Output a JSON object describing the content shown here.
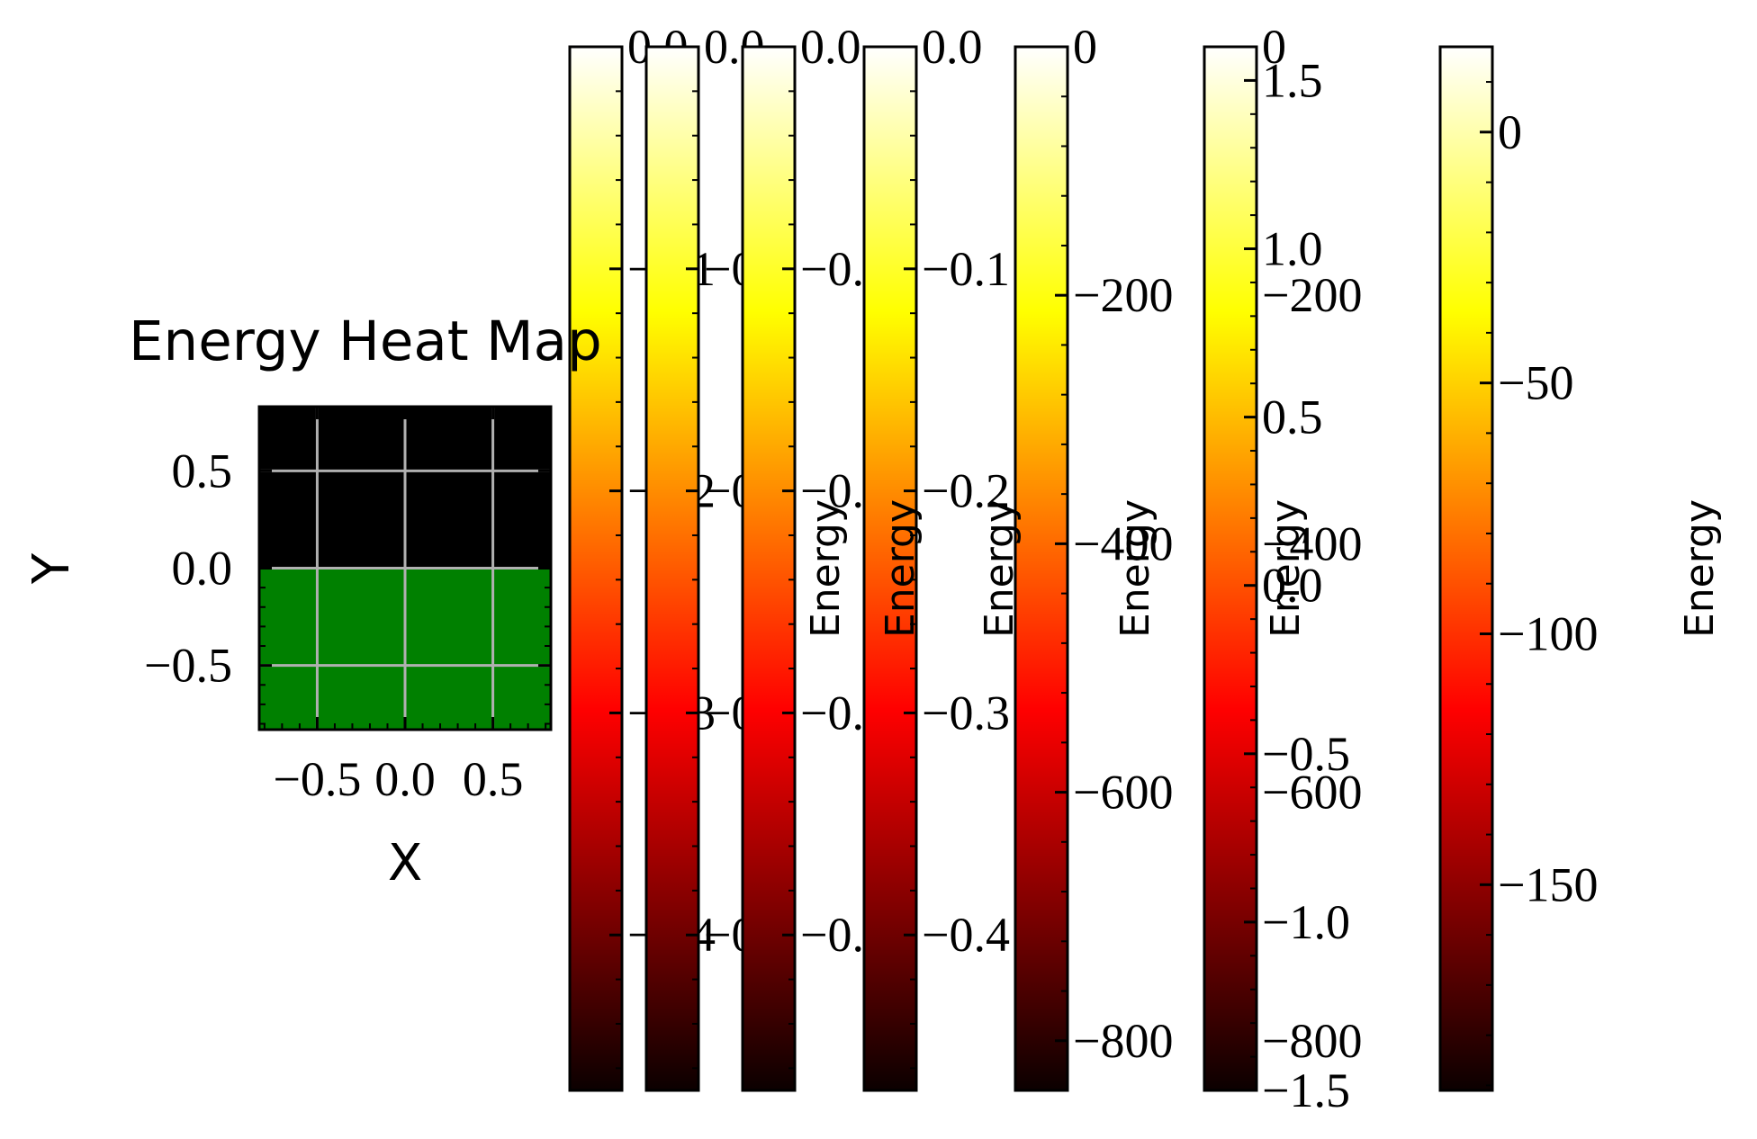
{
  "chart_data": {
    "type": "heatmap",
    "title": "Energy Heat Map",
    "xlabel": "X",
    "ylabel": "Y",
    "xlim": [
      -0.83,
      0.83
    ],
    "ylim": [
      -0.83,
      0.83
    ],
    "xticks": [
      -0.5,
      0.0,
      0.5
    ],
    "xtick_labels": [
      "−0.5",
      "0.0",
      "0.5"
    ],
    "yticks": [
      0.5,
      0.0,
      -0.5
    ],
    "ytick_labels": [
      "0.5",
      "0.0",
      "−0.5"
    ],
    "grid": true,
    "regions": [
      {
        "y_range": [
          0.0,
          0.83
        ],
        "color": "#000000"
      },
      {
        "y_range": [
          -0.83,
          0.0
        ],
        "color": "#008000"
      }
    ],
    "colormap": "hot",
    "colorbars": [
      {
        "range": [
          -0.47,
          0.0
        ],
        "ticks": [
          0.0,
          -0.1,
          -0.2,
          -0.3,
          -0.4
        ],
        "tick_labels": [
          "0.0",
          "−0.1",
          "−0.2",
          "−0.3",
          "−0.4"
        ],
        "label": ""
      },
      {
        "range": [
          -0.47,
          0.0
        ],
        "ticks": [
          0.0,
          -0.1,
          -0.2,
          -0.3,
          -0.4
        ],
        "tick_labels": [
          "0.0",
          "−0.1",
          "−0.2",
          "−0.3",
          "−0.4"
        ],
        "label": ""
      },
      {
        "range": [
          -0.47,
          0.0
        ],
        "ticks": [
          0.0,
          -0.1,
          -0.2,
          -0.3,
          -0.4
        ],
        "tick_labels": [
          "0.0",
          "−0.1",
          "−0.2",
          "−0.3",
          "−0.4"
        ],
        "label": "Energy"
      },
      {
        "range": [
          -0.47,
          0.0
        ],
        "ticks": [
          0.0,
          -0.1,
          -0.2,
          -0.3,
          -0.4
        ],
        "tick_labels": [
          "0.0",
          "−0.1",
          "−0.2",
          "−0.3",
          "−0.4"
        ],
        "label": "Energy"
      },
      {
        "range": [
          -840,
          0
        ],
        "ticks": [
          0,
          -200,
          -400,
          -600,
          -800
        ],
        "tick_labels": [
          "0",
          "−200",
          "−400",
          "−600",
          "−800"
        ],
        "label": "Energy"
      },
      {
        "range": [
          -840,
          0
        ],
        "ticks": [
          0,
          -200,
          -400,
          -600,
          -800
        ],
        "tick_labels": [
          "0",
          "−200",
          "−400",
          "−600",
          "−800"
        ],
        "label": "Energy"
      },
      {
        "range": [
          -1.5,
          1.6
        ],
        "ticks": [
          1.5,
          1.0,
          0.5,
          0.0,
          -0.5,
          -1.0,
          -1.5
        ],
        "tick_labels": [
          "1.5",
          "1.0",
          "0.5",
          "0.0",
          "−0.5",
          "−1.0",
          "−1.5"
        ],
        "label": "Energy"
      },
      {
        "range": [
          -191,
          17
        ],
        "ticks": [
          0,
          -50,
          -100,
          -150
        ],
        "tick_labels": [
          "0",
          "−50",
          "−100",
          "−150"
        ],
        "label": "Energy"
      }
    ]
  }
}
